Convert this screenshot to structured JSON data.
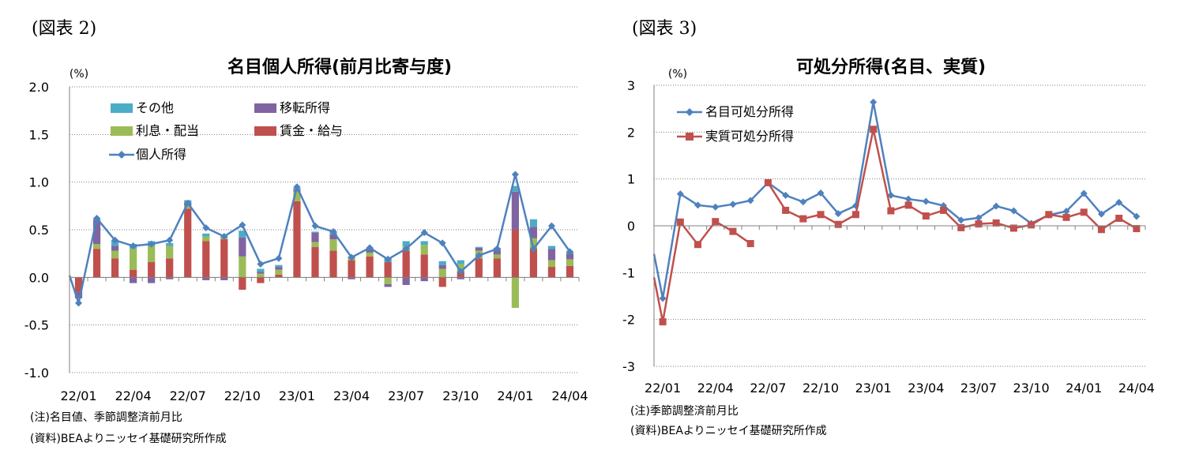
{
  "figures": {
    "left_label": "(図表 2)",
    "right_label": "(図表 3)"
  },
  "notes": {
    "left_note": "(注)名目値、季節調整済前月比",
    "left_source": "(資料)BEAよりニッセイ基礎研究所作成",
    "right_note": "(注)季節調整済前月比",
    "right_source": "(資料)BEAよりニッセイ基礎研究所作成"
  },
  "chart_data": [
    {
      "type": "bar",
      "title": "名目個人所得(前月比寄与度)",
      "ylabel": "(%)",
      "ylim": [
        -1.0,
        2.0
      ],
      "yticks": [
        "2.0",
        "1.5",
        "1.0",
        "0.5",
        "0.0",
        "-0.5",
        "-1.0"
      ],
      "grid": true,
      "stacked": true,
      "legend_position": "top-left",
      "colors": {
        "wages": "#c0504d",
        "interest": "#9bbb59",
        "transfer": "#8064a2",
        "other": "#4bacc6",
        "total": "#4f81bd"
      },
      "categories": [
        "22/01",
        "22/02",
        "22/03",
        "22/04",
        "22/05",
        "22/06",
        "22/07",
        "22/08",
        "22/09",
        "22/10",
        "22/11",
        "22/12",
        "23/01",
        "23/02",
        "23/03",
        "23/04",
        "23/05",
        "23/06",
        "23/07",
        "23/08",
        "23/09",
        "23/10",
        "23/11",
        "23/12",
        "24/01",
        "24/02",
        "24/03",
        "24/04"
      ],
      "tick_labels": [
        "22/01",
        "22/04",
        "22/07",
        "22/10",
        "23/01",
        "23/04",
        "23/07",
        "23/10",
        "24/01",
        "24/04"
      ],
      "series": [
        {
          "name": "賃金・給与",
          "key": "wages",
          "values": [
            -0.15,
            0.3,
            0.2,
            0.08,
            0.16,
            0.2,
            0.72,
            0.38,
            0.4,
            -0.13,
            -0.06,
            0.03,
            0.8,
            0.32,
            0.28,
            0.18,
            0.22,
            0.16,
            0.28,
            0.24,
            -0.1,
            0.06,
            0.2,
            0.2,
            0.5,
            0.3,
            0.11,
            0.12
          ]
        },
        {
          "name": "利息・配当",
          "key": "interest",
          "values": [
            0.0,
            0.05,
            0.08,
            0.22,
            0.17,
            0.13,
            0.03,
            0.05,
            0.02,
            0.22,
            0.04,
            0.05,
            0.1,
            0.05,
            0.12,
            0.03,
            0.04,
            -0.07,
            0.05,
            0.1,
            0.09,
            0.08,
            0.08,
            0.04,
            -0.32,
            0.11,
            0.07,
            0.07
          ]
        },
        {
          "name": "移転所得",
          "key": "transfer",
          "values": [
            -0.07,
            0.25,
            0.05,
            -0.06,
            -0.06,
            -0.02,
            0.03,
            -0.03,
            -0.03,
            0.2,
            0.02,
            0.03,
            0.02,
            0.1,
            0.05,
            -0.02,
            0.04,
            -0.03,
            -0.08,
            -0.04,
            0.04,
            -0.02,
            0.03,
            0.05,
            0.4,
            0.12,
            0.12,
            0.06
          ]
        },
        {
          "name": "その他",
          "key": "other",
          "values": [
            0.0,
            0.02,
            0.06,
            0.05,
            0.05,
            0.03,
            0.03,
            0.03,
            0.01,
            0.07,
            0.03,
            0.02,
            0.02,
            0.01,
            0.03,
            0.01,
            0.01,
            0.05,
            0.05,
            0.04,
            0.04,
            0.04,
            0.01,
            0.02,
            0.06,
            0.08,
            0.03,
            0.02
          ]
        },
        {
          "name": "個人所得",
          "key": "total",
          "type": "line",
          "values": [
            -0.27,
            0.62,
            0.39,
            0.33,
            0.35,
            0.39,
            0.78,
            0.52,
            0.43,
            0.55,
            0.14,
            0.2,
            0.95,
            0.54,
            0.48,
            0.21,
            0.31,
            0.19,
            0.3,
            0.47,
            0.36,
            0.06,
            0.23,
            0.3,
            1.08,
            0.3,
            0.54,
            0.27
          ]
        }
      ]
    },
    {
      "type": "line",
      "title": "可処分所得(名目、実質)",
      "ylabel": "(%)",
      "ylim": [
        -3,
        3
      ],
      "yticks": [
        "3",
        "2",
        "1",
        "0",
        "-1",
        "-2",
        "-3"
      ],
      "grid": true,
      "legend_position": "top-left",
      "x": [
        "22/01",
        "22/02",
        "22/03",
        "22/04",
        "22/05",
        "22/06",
        "22/07",
        "22/08",
        "22/09",
        "22/10",
        "22/11",
        "22/12",
        "23/01",
        "23/02",
        "23/03",
        "23/04",
        "23/05",
        "23/06",
        "23/07",
        "23/08",
        "23/09",
        "23/10",
        "23/11",
        "23/12",
        "24/01",
        "24/02",
        "24/03",
        "24/04"
      ],
      "tick_labels": [
        "22/01",
        "22/04",
        "22/07",
        "22/10",
        "23/01",
        "23/04",
        "23/07",
        "23/10",
        "24/01",
        "24/04"
      ],
      "series": [
        {
          "name": "名目可処分所得",
          "color": "#4f81bd",
          "marker": "diamond",
          "values": [
            -1.55,
            0.68,
            0.44,
            0.4,
            0.46,
            0.54,
            0.92,
            0.65,
            0.51,
            0.7,
            0.26,
            0.43,
            2.64,
            0.65,
            0.57,
            0.52,
            0.43,
            0.12,
            0.17,
            0.42,
            0.32,
            0.05,
            0.23,
            0.31,
            0.69,
            0.25,
            0.5,
            0.2
          ]
        },
        {
          "name": "実質可処分所得",
          "color": "#c0504d",
          "marker": "square",
          "values": [
            -2.05,
            0.08,
            -0.4,
            0.09,
            -0.12,
            -0.38,
            0.92,
            0.33,
            0.15,
            0.24,
            0.03,
            0.24,
            2.06,
            0.32,
            0.44,
            0.21,
            0.33,
            -0.04,
            0.04,
            0.06,
            -0.05,
            0.02,
            0.24,
            0.18,
            0.29,
            -0.08,
            0.16,
            -0.06
          ]
        }
      ]
    }
  ]
}
